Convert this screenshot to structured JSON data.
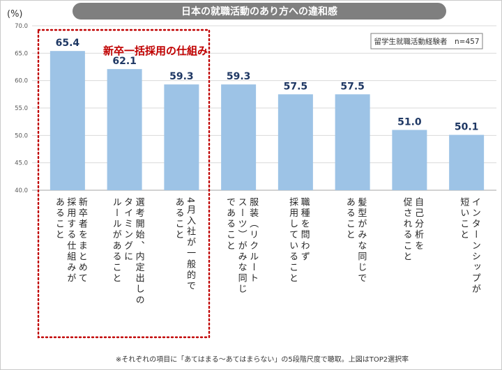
{
  "chart_data": {
    "type": "bar",
    "title": "日本の就職活動のあり方への違和感",
    "ylabel": "(%)",
    "ylim": [
      40,
      70
    ],
    "yticks": [
      "70.0",
      "65.0",
      "60.0",
      "55.0",
      "50.0",
      "45.0",
      "40.0"
    ],
    "categories": [
      [
        "新卒者をまとめて",
        "採用する仕組みが",
        "あること"
      ],
      [
        "選考開始、内定出しの",
        "タイミングに",
        "ルールがあること"
      ],
      [
        "4月入社が一般的で",
        "あること"
      ],
      [
        "服装（リクルート",
        "スーツ）がみな同じ",
        "であること"
      ],
      [
        "職種を問わず",
        "採用していること"
      ],
      [
        "髪型がみな同じで",
        "あること"
      ],
      [
        "自己分析を",
        "促されること"
      ],
      [
        "インターンシップが",
        "短いこと"
      ]
    ],
    "values": [
      65.4,
      62.1,
      59.3,
      59.3,
      57.5,
      57.5,
      51.0,
      50.1
    ],
    "value_labels": [
      "65.4",
      "62.1",
      "59.3",
      "59.3",
      "57.5",
      "57.5",
      "51.0",
      "50.1"
    ],
    "legend_note": "留学生就職活動経験者　n=457",
    "annotation": "新卒一括採用の仕組み",
    "footnote": "※それぞれの項目に「あてはまる〜あてはまらない」の5段階尺度で聴取。上図はTOP2選択率",
    "colors": {
      "bar": "#9DC3E6",
      "value_label": "#1F3864",
      "title_bg": "#7F7F7F",
      "title_text": "#FFFFFF",
      "annotation": "#C00000",
      "grid": "#D9D9D9"
    }
  }
}
